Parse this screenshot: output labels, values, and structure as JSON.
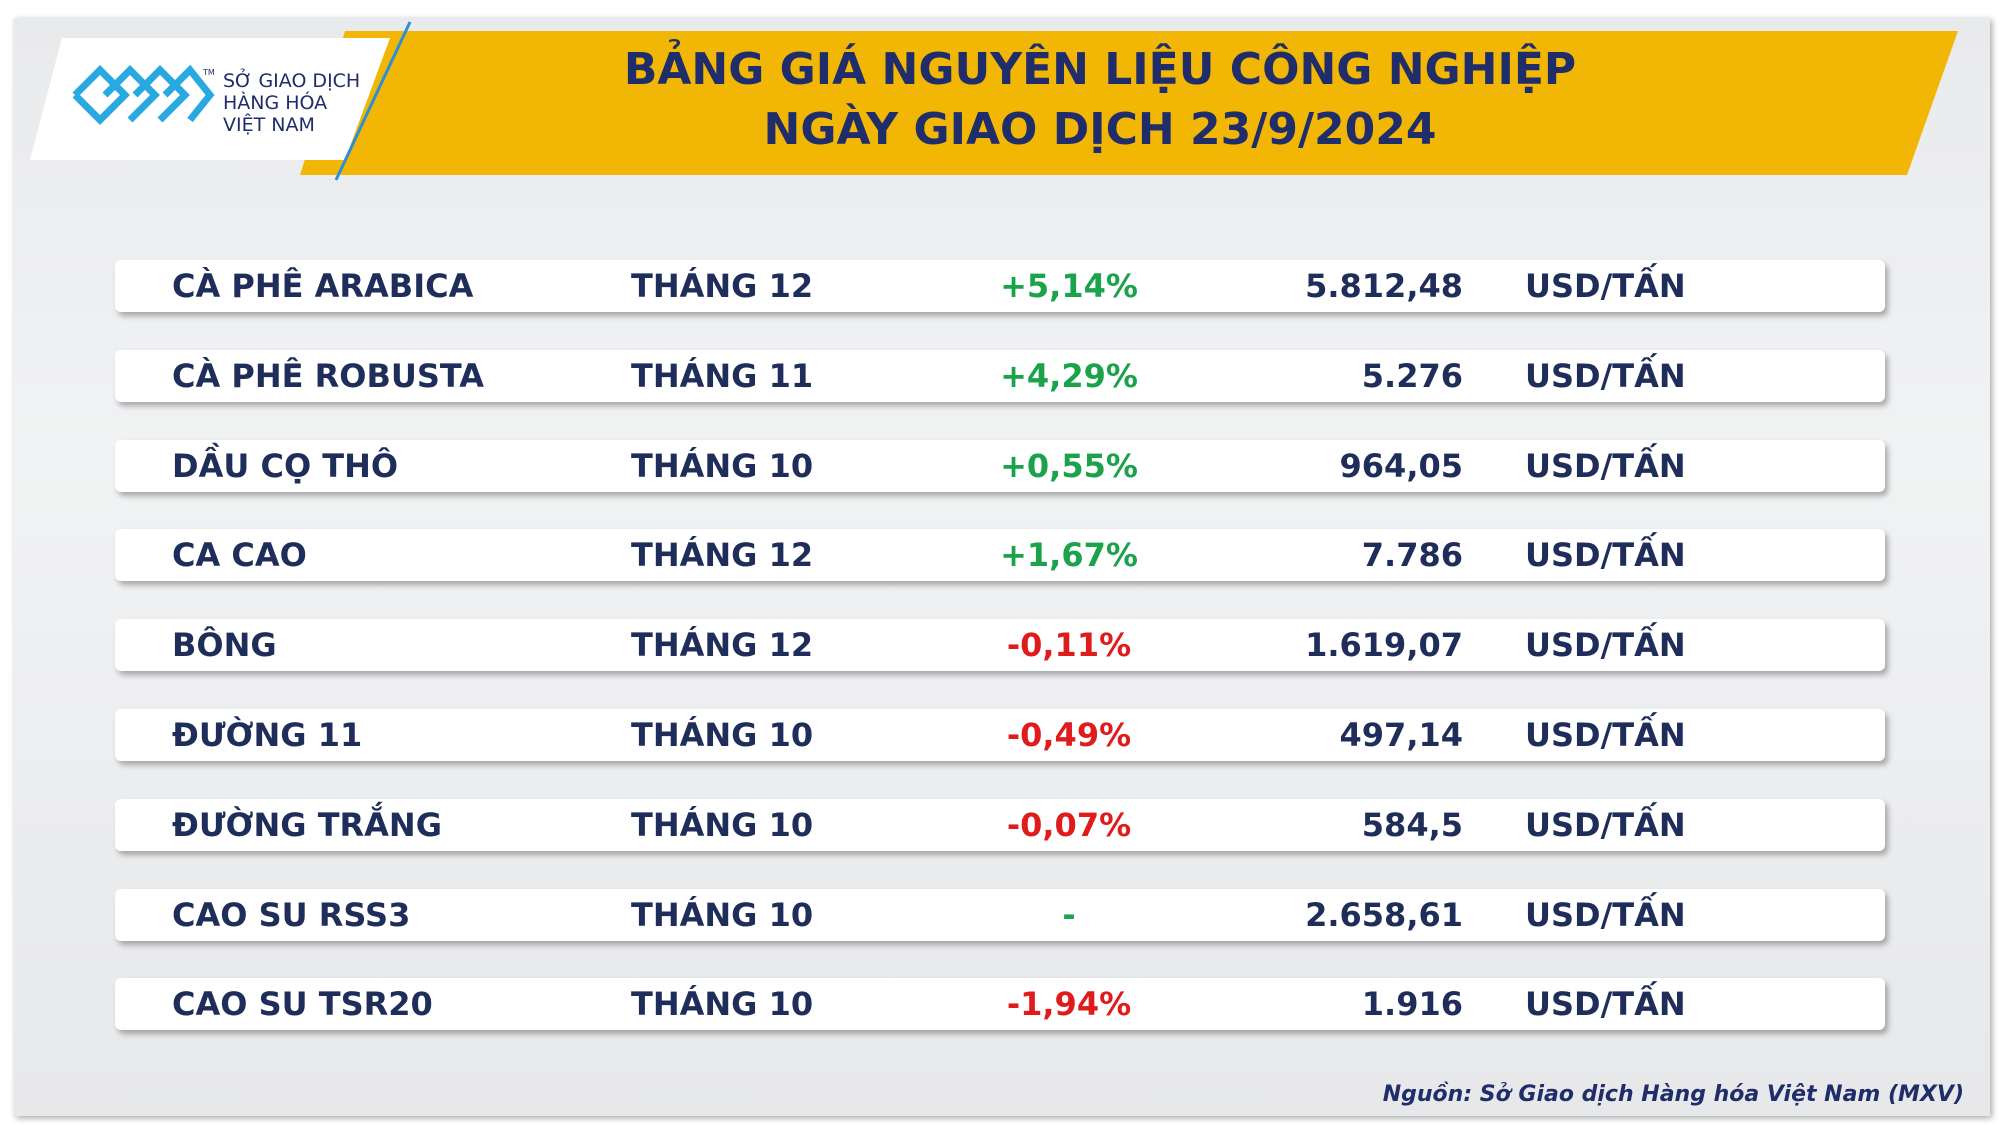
{
  "header": {
    "logo": {
      "lines": [
        "SỞ GIAO DỊCH",
        "HÀNG HÓA",
        "VIỆT NAM"
      ],
      "trademark": "TM"
    },
    "title": [
      "BẢNG GIÁ NGUYÊN LIỆU CÔNG NGHIỆP",
      "NGÀY GIAO DỊCH 23/9/2024"
    ]
  },
  "table": {
    "rows": [
      {
        "name": "CÀ PHÊ ARABICA",
        "month": "THÁNG 12",
        "change": "+5,14%",
        "change_color": "#1aa34a",
        "price": "5.812,48",
        "unit": "USD/TẤN"
      },
      {
        "name": "CÀ PHÊ ROBUSTA",
        "month": "THÁNG 11",
        "change": "+4,29%",
        "change_color": "#1aa34a",
        "price": "5.276",
        "unit": "USD/TẤN"
      },
      {
        "name": "DẦU CỌ THÔ",
        "month": "THÁNG 10",
        "change": "+0,55%",
        "change_color": "#1aa34a",
        "price": "964,05",
        "unit": "USD/TẤN"
      },
      {
        "name": "CA CAO",
        "month": "THÁNG 12",
        "change": "+1,67%",
        "change_color": "#1aa34a",
        "price": "7.786",
        "unit": "USD/TẤN"
      },
      {
        "name": "BÔNG",
        "month": "THÁNG 12",
        "change": "-0,11%",
        "change_color": "#e01b1b",
        "price": "1.619,07",
        "unit": "USD/TẤN"
      },
      {
        "name": "ĐƯỜNG 11",
        "month": "THÁNG 10",
        "change": "-0,49%",
        "change_color": "#e01b1b",
        "price": "497,14",
        "unit": "USD/TẤN"
      },
      {
        "name": "ĐƯỜNG TRẮNG",
        "month": "THÁNG 10",
        "change": "-0,07%",
        "change_color": "#e01b1b",
        "price": "584,5",
        "unit": "USD/TẤN"
      },
      {
        "name": "CAO SU RSS3",
        "month": "THÁNG 10",
        "change": "-",
        "change_color": "#1aa34a",
        "price": "2.658,61",
        "unit": "USD/TẤN"
      },
      {
        "name": "CAO SU TSR20",
        "month": "THÁNG 10",
        "change": "-1,94%",
        "change_color": "#e01b1b",
        "price": "1.916",
        "unit": "USD/TẤN"
      }
    ]
  },
  "footer": {
    "source": "Nguồn: Sở Giao dịch Hàng hóa Việt Nam (MXV)"
  }
}
